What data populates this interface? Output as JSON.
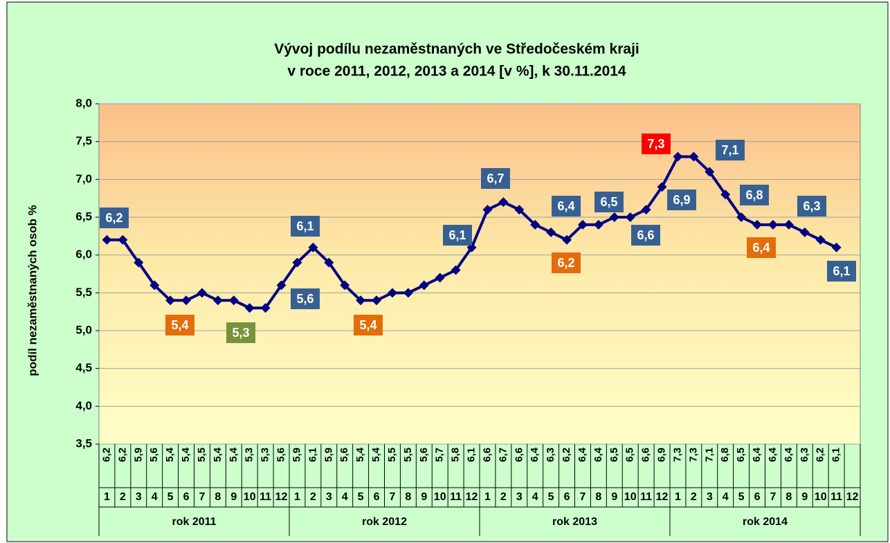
{
  "chart_data": {
    "type": "line",
    "title": [
      "Vývoj podílu nezaměstnaných ve Středočeském kraji",
      "v roce 2011, 2012, 2013 a 2014 [v %], k 30.11.2014"
    ],
    "y_label": "podíl nezaměstnaných osob %",
    "categories": [
      "1",
      "2",
      "3",
      "4",
      "5",
      "6",
      "7",
      "8",
      "9",
      "10",
      "11",
      "12",
      "1",
      "2",
      "3",
      "4",
      "5",
      "6",
      "7",
      "8",
      "9",
      "10",
      "11",
      "12",
      "1",
      "2",
      "3",
      "4",
      "5",
      "6",
      "7",
      "8",
      "9",
      "10",
      "11",
      "12",
      "1",
      "2",
      "3",
      "4",
      "5",
      "6",
      "7",
      "8",
      "9",
      "10",
      "11",
      "12"
    ],
    "groups": [
      "rok 2011",
      "rok 2012",
      "rok 2013",
      "rok 2014"
    ],
    "values": [
      6.2,
      6.2,
      5.9,
      5.6,
      5.4,
      5.4,
      5.5,
      5.4,
      5.4,
      5.3,
      5.3,
      5.6,
      5.9,
      6.1,
      5.9,
      5.6,
      5.4,
      5.4,
      5.5,
      5.5,
      5.6,
      5.7,
      5.8,
      6.1,
      6.6,
      6.7,
      6.6,
      6.4,
      6.3,
      6.2,
      6.4,
      6.4,
      6.5,
      6.5,
      6.6,
      6.9,
      7.3,
      7.3,
      7.1,
      6.8,
      6.5,
      6.4,
      6.4,
      6.4,
      6.3,
      6.2,
      6.1,
      null
    ],
    "value_labels": [
      "6,2",
      "6,2",
      "5,9",
      "5,6",
      "5,4",
      "5,4",
      "5,5",
      "5,4",
      "5,4",
      "5,3",
      "5,3",
      "5,6",
      "5,9",
      "6,1",
      "5,9",
      "5,6",
      "5,4",
      "5,4",
      "5,5",
      "5,5",
      "5,6",
      "5,7",
      "5,8",
      "6,1",
      "6,6",
      "6,7",
      "6,6",
      "6,4",
      "6,3",
      "6,2",
      "6,4",
      "6,4",
      "6,5",
      "6,5",
      "6,6",
      "6,9",
      "7,3",
      "7,3",
      "7,1",
      "6,8",
      "6,5",
      "6,4",
      "6,4",
      "6,4",
      "6,3",
      "6,2",
      "6,1",
      null
    ],
    "color": "#000080",
    "ylim": [
      3.5,
      8.0
    ],
    "yticks": [
      {
        "value": 3.5,
        "label": "3,5"
      },
      {
        "value": 4.0,
        "label": "4,0"
      },
      {
        "value": 4.5,
        "label": "4,5"
      },
      {
        "value": 5.0,
        "label": "5,0"
      },
      {
        "value": 5.5,
        "label": "5,5"
      },
      {
        "value": 6.0,
        "label": "6,0"
      },
      {
        "value": 6.5,
        "label": "6,5"
      },
      {
        "value": 7.0,
        "label": "7,0"
      },
      {
        "value": 7.5,
        "label": "7,5"
      },
      {
        "value": 8.0,
        "label": "8,0"
      }
    ],
    "grid": true,
    "callout_colors": {
      "normal": "#376092",
      "year_min": "#e46c0a",
      "min": "#77933c",
      "max": "#ff0000"
    }
  }
}
